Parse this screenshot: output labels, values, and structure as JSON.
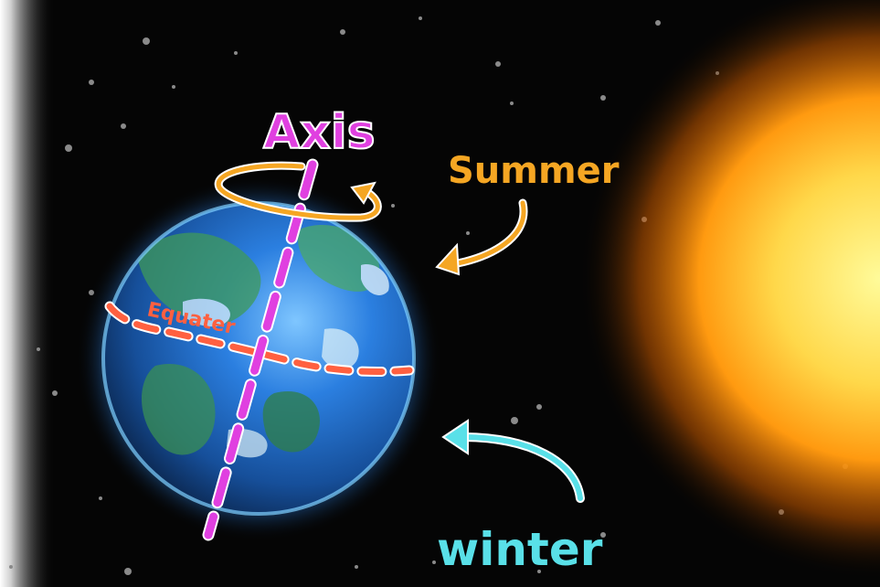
{
  "labels": {
    "axis": "Axis",
    "equator": "Equater",
    "summer": "Summer",
    "winter": "winter"
  },
  "colors": {
    "space": "#050505",
    "axis": "#e040e0",
    "equator": "#ff6040",
    "summer": "#f5a623",
    "winter": "#59e0e8",
    "sun_core": "#fff27a",
    "sun_edge": "#ff8a00",
    "earth_ocean": "#1e6fd0",
    "earth_land": "#3f9a5a"
  },
  "objects": {
    "sun": "sun",
    "earth": "earth",
    "stars": "stars"
  }
}
